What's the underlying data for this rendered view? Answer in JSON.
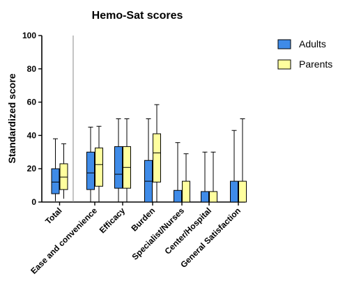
{
  "chart_data": {
    "type": "box",
    "title": "Hemo-Sat scores",
    "ylabel": "Standardized score",
    "xlabel": "",
    "ylim": [
      0,
      100
    ],
    "yticks": [
      0,
      20,
      40,
      60,
      80,
      100
    ],
    "categories": [
      "Total",
      "Ease and convenience",
      "Efficacy",
      "Burden",
      "Specialist/Nurses",
      "Center/Hospital",
      "General Satisfaction"
    ],
    "legend_position": "top-right",
    "series": [
      {
        "name": "Adults",
        "color": "#3f8be8",
        "boxes": [
          {
            "min": 0.5,
            "q1": 5,
            "median": 12,
            "q3": 20,
            "max": 38
          },
          {
            "min": 0,
            "q1": 7.5,
            "median": 17.5,
            "q3": 30,
            "max": 45
          },
          {
            "min": 0,
            "q1": 8.3,
            "median": 16.7,
            "q3": 33.3,
            "max": 50
          },
          {
            "min": 0,
            "q1": 0,
            "median": 12.5,
            "q3": 25,
            "max": 50
          },
          {
            "min": 0,
            "q1": 0,
            "median": 0,
            "q3": 7,
            "max": 35.7
          },
          {
            "min": 0,
            "q1": 0,
            "median": 0,
            "q3": 6.3,
            "max": 30
          },
          {
            "min": 0,
            "q1": 0,
            "median": 0,
            "q3": 12.5,
            "max": 43
          }
        ]
      },
      {
        "name": "Parents",
        "color": "#ffff9e",
        "boxes": [
          {
            "min": 2,
            "q1": 7.5,
            "median": 15,
            "q3": 23,
            "max": 35
          },
          {
            "min": 0,
            "q1": 9.5,
            "median": 22.5,
            "q3": 32.5,
            "max": 45.5
          },
          {
            "min": 0,
            "q1": 8.3,
            "median": 20.8,
            "q3": 33.3,
            "max": 50
          },
          {
            "min": 0,
            "q1": 12,
            "median": 29.5,
            "q3": 41,
            "max": 58.5
          },
          {
            "min": 0,
            "q1": 0,
            "median": 0,
            "q3": 12.5,
            "max": 29
          },
          {
            "min": 0,
            "q1": 0,
            "median": 0,
            "q3": 6.3,
            "max": 30
          },
          {
            "min": 0,
            "q1": 0,
            "median": 0,
            "q3": 12.5,
            "max": 50
          }
        ]
      }
    ]
  }
}
